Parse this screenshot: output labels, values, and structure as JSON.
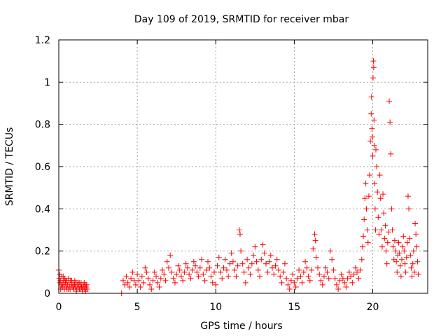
{
  "chart_data": {
    "type": "scatter",
    "title": "Day 109 of 2019, SRMTID for receiver mbar",
    "xlabel": "GPS time / hours",
    "ylabel": "SRMTID / TECUs",
    "xlim": [
      0,
      23.5
    ],
    "ylim": [
      0,
      1.2
    ],
    "xticks": [
      0,
      5,
      10,
      15,
      20
    ],
    "yticks": [
      0,
      0.2,
      0.4,
      0.6,
      0.8,
      1,
      1.2
    ],
    "xtick_labels": [
      "0",
      "5",
      "10",
      "15",
      "20"
    ],
    "ytick_labels": [
      "0",
      "0.2",
      "0.4",
      "0.6",
      "0.8",
      "1",
      "1.2"
    ],
    "grid": true,
    "legend": "none",
    "marker": "+",
    "color": "#ff0000",
    "series": [
      {
        "points": [
          [
            0.0,
            0.11
          ],
          [
            0.03,
            0.07
          ],
          [
            0.06,
            0.05
          ],
          [
            0.1,
            0.06
          ],
          [
            0.14,
            0.04
          ],
          [
            0.18,
            0.08
          ],
          [
            0.22,
            0.05
          ],
          [
            0.26,
            0.03
          ],
          [
            0.3,
            0.06
          ],
          [
            0.34,
            0.04
          ],
          [
            0.38,
            0.07
          ],
          [
            0.42,
            0.05
          ],
          [
            0.46,
            0.03
          ],
          [
            0.5,
            0.06
          ],
          [
            0.55,
            0.04
          ],
          [
            0.6,
            0.02
          ],
          [
            0.65,
            0.05
          ],
          [
            0.7,
            0.03
          ],
          [
            0.75,
            0.06
          ],
          [
            0.8,
            0.04
          ],
          [
            0.85,
            0.03
          ],
          [
            0.9,
            0.05
          ],
          [
            0.95,
            0.02
          ],
          [
            1.0,
            0.04
          ],
          [
            1.05,
            0.03
          ],
          [
            1.1,
            0.05
          ],
          [
            1.15,
            0.02
          ],
          [
            1.2,
            0.04
          ],
          [
            1.25,
            0.03
          ],
          [
            1.3,
            0.05
          ],
          [
            1.35,
            0.02
          ],
          [
            1.4,
            0.04
          ],
          [
            1.45,
            0.03
          ],
          [
            1.5,
            0.02
          ],
          [
            1.55,
            0.04
          ],
          [
            1.6,
            0.03
          ],
          [
            1.65,
            0.02
          ],
          [
            1.7,
            0.04
          ],
          [
            1.75,
            0.03
          ],
          [
            1.8,
            0.02
          ],
          [
            0.05,
            0.09
          ],
          [
            0.12,
            0.02
          ],
          [
            0.2,
            0.03
          ],
          [
            0.28,
            0.08
          ],
          [
            0.36,
            0.02
          ],
          [
            0.44,
            0.06
          ],
          [
            0.52,
            0.02
          ],
          [
            0.62,
            0.07
          ],
          [
            0.72,
            0.02
          ],
          [
            0.82,
            0.06
          ],
          [
            0.92,
            0.03
          ],
          [
            1.02,
            0.06
          ],
          [
            1.12,
            0.01
          ],
          [
            1.22,
            0.05
          ],
          [
            1.32,
            0.02
          ],
          [
            1.42,
            0.05
          ],
          [
            1.52,
            0.01
          ],
          [
            1.62,
            0.05
          ],
          [
            1.72,
            0.01
          ],
          [
            1.78,
            0.04
          ],
          [
            4.0,
            0.0
          ],
          [
            4.1,
            0.06
          ],
          [
            4.2,
            0.04
          ],
          [
            4.3,
            0.08
          ],
          [
            4.4,
            0.05
          ],
          [
            4.5,
            0.03
          ],
          [
            4.6,
            0.07
          ],
          [
            4.7,
            0.1
          ],
          [
            4.8,
            0.06
          ],
          [
            4.9,
            0.04
          ],
          [
            5.0,
            0.09
          ],
          [
            5.1,
            0.06
          ],
          [
            5.2,
            0.03
          ],
          [
            5.3,
            0.08
          ],
          [
            5.4,
            0.05
          ],
          [
            5.5,
            0.12
          ],
          [
            5.6,
            0.1
          ],
          [
            5.7,
            0.07
          ],
          [
            5.8,
            0.04
          ],
          [
            5.9,
            0.02
          ],
          [
            6.0,
            0.06
          ],
          [
            6.1,
            0.1
          ],
          [
            6.2,
            0.08
          ],
          [
            6.3,
            0.05
          ],
          [
            6.4,
            0.03
          ],
          [
            6.5,
            0.07
          ],
          [
            6.6,
            0.11
          ],
          [
            6.7,
            0.09
          ],
          [
            6.8,
            0.06
          ],
          [
            6.9,
            0.15
          ],
          [
            7.0,
            0.12
          ],
          [
            7.1,
            0.18
          ],
          [
            7.2,
            0.1
          ],
          [
            7.3,
            0.07
          ],
          [
            7.4,
            0.05
          ],
          [
            7.5,
            0.09
          ],
          [
            7.6,
            0.13
          ],
          [
            7.7,
            0.11
          ],
          [
            7.8,
            0.08
          ],
          [
            7.9,
            0.06
          ],
          [
            8.0,
            0.1
          ],
          [
            8.1,
            0.14
          ],
          [
            8.2,
            0.12
          ],
          [
            8.3,
            0.09
          ],
          [
            8.4,
            0.07
          ],
          [
            8.5,
            0.11
          ],
          [
            8.6,
            0.15
          ],
          [
            8.7,
            0.13
          ],
          [
            8.8,
            0.1
          ],
          [
            8.9,
            0.08
          ],
          [
            9.0,
            0.12
          ],
          [
            9.1,
            0.16
          ],
          [
            9.2,
            0.09
          ],
          [
            9.3,
            0.06
          ],
          [
            9.4,
            0.11
          ],
          [
            9.5,
            0.15
          ],
          [
            9.6,
            0.12
          ],
          [
            9.7,
            0.08
          ],
          [
            9.8,
            0.05
          ],
          [
            9.9,
            0.1
          ],
          [
            10.0,
            0.04
          ],
          [
            10.1,
            0.13
          ],
          [
            10.2,
            0.17
          ],
          [
            10.3,
            0.1
          ],
          [
            10.4,
            0.07
          ],
          [
            10.5,
            0.12
          ],
          [
            10.6,
            0.16
          ],
          [
            10.7,
            0.11
          ],
          [
            10.8,
            0.08
          ],
          [
            10.9,
            0.14
          ],
          [
            11.0,
            0.19
          ],
          [
            11.1,
            0.15
          ],
          [
            11.2,
            0.11
          ],
          [
            11.3,
            0.08
          ],
          [
            11.4,
            0.13
          ],
          [
            11.5,
            0.3
          ],
          [
            11.55,
            0.28
          ],
          [
            11.6,
            0.2
          ],
          [
            11.7,
            0.14
          ],
          [
            11.8,
            0.1
          ],
          [
            11.9,
            0.05
          ],
          [
            12.0,
            0.16
          ],
          [
            12.1,
            0.12
          ],
          [
            12.2,
            0.09
          ],
          [
            12.3,
            0.14
          ],
          [
            12.4,
            0.18
          ],
          [
            12.5,
            0.22
          ],
          [
            12.6,
            0.15
          ],
          [
            12.7,
            0.11
          ],
          [
            12.8,
            0.08
          ],
          [
            12.9,
            0.16
          ],
          [
            13.0,
            0.23
          ],
          [
            13.1,
            0.19
          ],
          [
            13.2,
            0.14
          ],
          [
            13.3,
            0.1
          ],
          [
            13.4,
            0.15
          ],
          [
            13.5,
            0.18
          ],
          [
            13.6,
            0.12
          ],
          [
            13.7,
            0.09
          ],
          [
            13.8,
            0.13
          ],
          [
            13.9,
            0.16
          ],
          [
            14.0,
            0.11
          ],
          [
            14.1,
            0.08
          ],
          [
            14.2,
            0.05
          ],
          [
            14.3,
            0.1
          ],
          [
            14.4,
            0.14
          ],
          [
            14.5,
            0.07
          ],
          [
            14.6,
            0.04
          ],
          [
            14.7,
            0.02
          ],
          [
            14.8,
            0.06
          ],
          [
            14.9,
            0.09
          ],
          [
            15.0,
            0.05
          ],
          [
            15.1,
            0.03
          ],
          [
            15.2,
            0.07
          ],
          [
            15.3,
            0.11
          ],
          [
            15.4,
            0.08
          ],
          [
            15.5,
            0.05
          ],
          [
            15.6,
            0.1
          ],
          [
            15.7,
            0.15
          ],
          [
            15.8,
            0.12
          ],
          [
            15.9,
            0.08
          ],
          [
            16.0,
            0.06
          ],
          [
            16.1,
            0.11
          ],
          [
            16.2,
            0.21
          ],
          [
            16.3,
            0.28
          ],
          [
            16.35,
            0.25
          ],
          [
            16.4,
            0.17
          ],
          [
            16.5,
            0.12
          ],
          [
            16.6,
            0.09
          ],
          [
            16.7,
            0.06
          ],
          [
            16.8,
            0.04
          ],
          [
            16.9,
            0.08
          ],
          [
            17.0,
            0.12
          ],
          [
            17.1,
            0.1
          ],
          [
            17.2,
            0.07
          ],
          [
            17.3,
            0.2
          ],
          [
            17.4,
            0.16
          ],
          [
            17.5,
            0.11
          ],
          [
            17.6,
            0.07
          ],
          [
            17.7,
            0.04
          ],
          [
            17.8,
            0.02
          ],
          [
            17.9,
            0.06
          ],
          [
            18.0,
            0.09
          ],
          [
            18.1,
            0.07
          ],
          [
            18.2,
            0.05
          ],
          [
            18.3,
            0.03
          ],
          [
            18.4,
            0.07
          ],
          [
            18.5,
            0.1
          ],
          [
            18.6,
            0.08
          ],
          [
            18.7,
            0.05
          ],
          [
            18.8,
            0.09
          ],
          [
            18.9,
            0.12
          ],
          [
            19.0,
            0.1
          ],
          [
            19.1,
            0.07
          ],
          [
            19.2,
            0.11
          ],
          [
            19.3,
            0.16
          ],
          [
            19.35,
            0.22
          ],
          [
            19.4,
            0.27
          ],
          [
            19.45,
            0.35
          ],
          [
            19.5,
            0.45
          ],
          [
            19.55,
            0.52
          ],
          [
            19.6,
            0.4
          ],
          [
            19.65,
            0.3
          ],
          [
            19.7,
            0.24
          ],
          [
            19.75,
            0.46
          ],
          [
            19.8,
            0.56
          ],
          [
            19.85,
            0.72
          ],
          [
            19.9,
            0.85
          ],
          [
            19.92,
            0.93
          ],
          [
            19.95,
            0.78
          ],
          [
            19.97,
            0.74
          ],
          [
            20.0,
            0.65
          ],
          [
            20.02,
            1.02
          ],
          [
            20.04,
            1.1
          ],
          [
            20.06,
            1.07
          ],
          [
            20.08,
            0.82
          ],
          [
            20.1,
            0.7
          ],
          [
            20.12,
            0.52
          ],
          [
            20.15,
            0.4
          ],
          [
            20.18,
            0.3
          ],
          [
            20.2,
            0.68
          ],
          [
            20.25,
            0.6
          ],
          [
            20.3,
            0.48
          ],
          [
            20.35,
            0.36
          ],
          [
            20.4,
            0.28
          ],
          [
            20.45,
            0.56
          ],
          [
            20.5,
            0.45
          ],
          [
            20.55,
            0.3
          ],
          [
            20.6,
            0.22
          ],
          [
            20.65,
            0.47
          ],
          [
            20.7,
            0.38
          ],
          [
            20.75,
            0.26
          ],
          [
            20.8,
            0.32
          ],
          [
            20.85,
            0.2
          ],
          [
            20.9,
            0.14
          ],
          [
            20.95,
            0.24
          ],
          [
            21.0,
            0.29
          ],
          [
            21.05,
            0.91
          ],
          [
            21.1,
            0.81
          ],
          [
            21.15,
            0.66
          ],
          [
            21.2,
            0.4
          ],
          [
            21.25,
            0.3
          ],
          [
            21.3,
            0.22
          ],
          [
            21.35,
            0.16
          ],
          [
            21.4,
            0.25
          ],
          [
            21.45,
            0.2
          ],
          [
            21.5,
            0.15
          ],
          [
            21.55,
            0.1
          ],
          [
            21.6,
            0.18
          ],
          [
            21.65,
            0.24
          ],
          [
            21.7,
            0.19
          ],
          [
            21.75,
            0.13
          ],
          [
            21.8,
            0.08
          ],
          [
            21.85,
            0.16
          ],
          [
            21.9,
            0.22
          ],
          [
            21.95,
            0.27
          ],
          [
            22.0,
            0.2
          ],
          [
            22.05,
            0.14
          ],
          [
            22.1,
            0.1
          ],
          [
            22.15,
            0.17
          ],
          [
            22.2,
            0.24
          ],
          [
            22.25,
            0.46
          ],
          [
            22.3,
            0.4
          ],
          [
            22.35,
            0.26
          ],
          [
            22.4,
            0.18
          ],
          [
            22.45,
            0.12
          ],
          [
            22.5,
            0.08
          ],
          [
            22.55,
            0.14
          ],
          [
            22.6,
            0.2
          ],
          [
            22.65,
            0.1
          ],
          [
            22.7,
            0.33
          ],
          [
            22.75,
            0.28
          ],
          [
            22.8,
            0.22
          ],
          [
            22.85,
            0.15
          ],
          [
            22.9,
            0.09
          ]
        ]
      }
    ]
  }
}
